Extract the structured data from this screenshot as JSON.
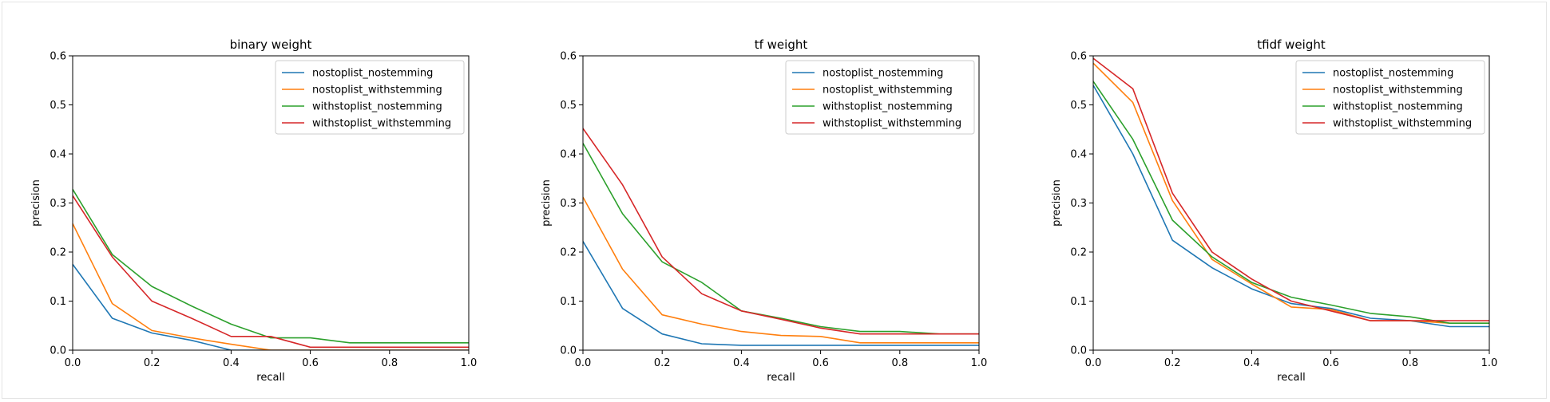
{
  "chart_data": [
    {
      "type": "line",
      "title": "binary weight",
      "xlabel": "recall",
      "ylabel": "precision",
      "xlim": [
        0,
        1
      ],
      "ylim": [
        0,
        0.6
      ],
      "xticks": [
        "0.0",
        "0.2",
        "0.4",
        "0.6",
        "0.8",
        "1.0"
      ],
      "yticks": [
        "0.0",
        "0.1",
        "0.2",
        "0.3",
        "0.4",
        "0.5",
        "0.6"
      ],
      "legend": "top-right",
      "x": [
        0,
        0.1,
        0.2,
        0.3,
        0.4,
        0.5,
        0.6,
        0.7,
        0.8,
        0.9,
        1.0
      ],
      "series": [
        {
          "name": "nostoplist_nostemming",
          "color": "#1f77b4",
          "values": [
            0.175,
            0.065,
            0.035,
            0.02,
            0.0,
            0.0,
            0.0,
            0.0,
            0.0,
            0.0,
            0.0
          ]
        },
        {
          "name": "nostoplist_withstemming",
          "color": "#ff7f0e",
          "values": [
            0.258,
            0.095,
            0.04,
            0.025,
            0.012,
            0.0,
            0.0,
            0.0,
            0.0,
            0.0,
            0.0
          ]
        },
        {
          "name": "withstoplist_nostemming",
          "color": "#2ca02c",
          "values": [
            0.328,
            0.195,
            0.13,
            0.09,
            0.053,
            0.025,
            0.025,
            0.015,
            0.015,
            0.015,
            0.015
          ]
        },
        {
          "name": "withstoplist_withstemming",
          "color": "#d62728",
          "values": [
            0.315,
            0.19,
            0.1,
            0.065,
            0.028,
            0.028,
            0.006,
            0.006,
            0.006,
            0.006,
            0.006
          ]
        }
      ]
    },
    {
      "type": "line",
      "title": "tf weight",
      "xlabel": "recall",
      "ylabel": "precision",
      "xlim": [
        0,
        1
      ],
      "ylim": [
        0,
        0.6
      ],
      "xticks": [
        "0.0",
        "0.2",
        "0.4",
        "0.6",
        "0.8",
        "1.0"
      ],
      "yticks": [
        "0.0",
        "0.1",
        "0.2",
        "0.3",
        "0.4",
        "0.5",
        "0.6"
      ],
      "legend": "top-right",
      "x": [
        0,
        0.1,
        0.2,
        0.3,
        0.4,
        0.5,
        0.6,
        0.7,
        0.8,
        0.9,
        1.0
      ],
      "series": [
        {
          "name": "nostoplist_nostemming",
          "color": "#1f77b4",
          "values": [
            0.222,
            0.085,
            0.033,
            0.013,
            0.01,
            0.01,
            0.01,
            0.01,
            0.01,
            0.01,
            0.01
          ]
        },
        {
          "name": "nostoplist_withstemming",
          "color": "#ff7f0e",
          "values": [
            0.312,
            0.165,
            0.072,
            0.053,
            0.038,
            0.03,
            0.028,
            0.015,
            0.015,
            0.015,
            0.015
          ]
        },
        {
          "name": "withstoplist_nostemming",
          "color": "#2ca02c",
          "values": [
            0.422,
            0.278,
            0.18,
            0.138,
            0.08,
            0.065,
            0.048,
            0.038,
            0.038,
            0.033,
            0.033
          ]
        },
        {
          "name": "withstoplist_withstemming",
          "color": "#d62728",
          "values": [
            0.452,
            0.337,
            0.19,
            0.115,
            0.08,
            0.063,
            0.045,
            0.033,
            0.033,
            0.033,
            0.033
          ]
        }
      ]
    },
    {
      "type": "line",
      "title": "tfidf weight",
      "xlabel": "recall",
      "ylabel": "precision",
      "xlim": [
        0,
        1
      ],
      "ylim": [
        0,
        0.6
      ],
      "xticks": [
        "0.0",
        "0.2",
        "0.4",
        "0.6",
        "0.8",
        "1.0"
      ],
      "yticks": [
        "0.0",
        "0.1",
        "0.2",
        "0.3",
        "0.4",
        "0.5",
        "0.6"
      ],
      "legend": "top-right",
      "x": [
        0,
        0.1,
        0.2,
        0.3,
        0.4,
        0.5,
        0.6,
        0.7,
        0.8,
        0.9,
        1.0
      ],
      "series": [
        {
          "name": "nostoplist_nostemming",
          "color": "#1f77b4",
          "values": [
            0.54,
            0.4,
            0.224,
            0.168,
            0.125,
            0.095,
            0.085,
            0.065,
            0.06,
            0.048,
            0.048
          ]
        },
        {
          "name": "nostoplist_withstemming",
          "color": "#ff7f0e",
          "values": [
            0.585,
            0.505,
            0.305,
            0.185,
            0.135,
            0.088,
            0.083,
            0.06,
            0.06,
            0.055,
            0.055
          ]
        },
        {
          "name": "withstoplist_nostemming",
          "color": "#2ca02c",
          "values": [
            0.548,
            0.43,
            0.265,
            0.19,
            0.138,
            0.108,
            0.092,
            0.075,
            0.068,
            0.055,
            0.055
          ]
        },
        {
          "name": "withstoplist_withstemming",
          "color": "#d62728",
          "values": [
            0.595,
            0.533,
            0.32,
            0.2,
            0.145,
            0.1,
            0.08,
            0.06,
            0.06,
            0.06,
            0.06
          ]
        }
      ]
    }
  ]
}
